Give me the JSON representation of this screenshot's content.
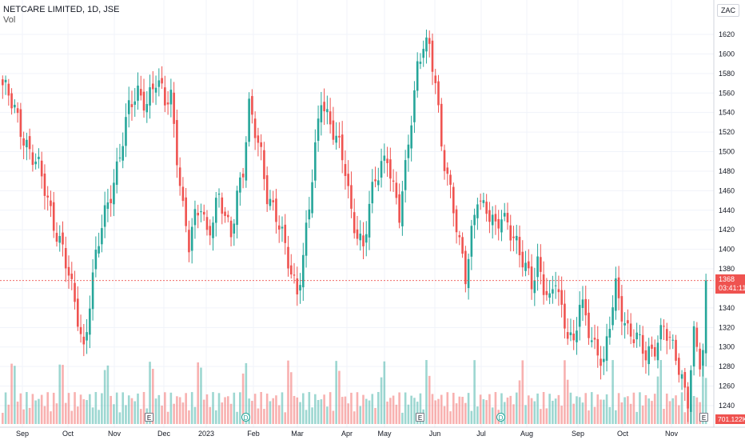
{
  "header": {
    "symbol_line": "NETCARE LIMITED, 1D, JSE",
    "volume_label": "Vol"
  },
  "currency": "ZAC",
  "price_tag": {
    "price": "1368",
    "countdown": "03:41:11"
  },
  "volume_tag": "701.122K",
  "colors": {
    "up": "#26a69a",
    "down": "#ef5350",
    "grid": "#f0f3fa",
    "axis": "#131722"
  },
  "events": [
    {
      "symbol": "E",
      "kind": "earnings",
      "month_index": 3
    },
    {
      "symbol": "D",
      "kind": "dividend",
      "month_index": 5
    },
    {
      "symbol": "E",
      "kind": "earnings",
      "month_index": 9
    },
    {
      "symbol": "D",
      "kind": "dividend",
      "month_index": 11
    },
    {
      "symbol": "E",
      "kind": "earnings",
      "month_index": 15
    }
  ],
  "chart_data": {
    "type": "candlestick",
    "ylim": [
      1220,
      1640
    ],
    "y_ticks": [
      1240,
      1260,
      1280,
      1300,
      1320,
      1340,
      1360,
      1380,
      1400,
      1420,
      1440,
      1460,
      1480,
      1500,
      1520,
      1540,
      1560,
      1580,
      1600,
      1620
    ],
    "x_ticks": [
      "Sep",
      "Oct",
      "Nov",
      "Dec",
      "2023",
      "Feb",
      "Mar",
      "Apr",
      "May",
      "Jun",
      "Jul",
      "Aug",
      "Sep",
      "Oct",
      "Nov"
    ],
    "last_price": 1368,
    "close_path": [
      [
        0,
        1568
      ],
      [
        4,
        1540
      ],
      [
        8,
        1510
      ],
      [
        12,
        1480
      ],
      [
        16,
        1440
      ],
      [
        20,
        1400
      ],
      [
        23,
        1355
      ],
      [
        25,
        1330
      ],
      [
        27,
        1300
      ],
      [
        29,
        1350
      ],
      [
        31,
        1390
      ],
      [
        33,
        1420
      ],
      [
        36,
        1460
      ],
      [
        39,
        1500
      ],
      [
        42,
        1540
      ],
      [
        45,
        1560
      ],
      [
        48,
        1555
      ],
      [
        51,
        1570
      ],
      [
        54,
        1550
      ],
      [
        56,
        1560
      ],
      [
        58,
        1500
      ],
      [
        60,
        1440
      ],
      [
        62,
        1400
      ],
      [
        64,
        1430
      ],
      [
        66,
        1450
      ],
      [
        68,
        1420
      ],
      [
        70,
        1430
      ],
      [
        72,
        1450
      ],
      [
        74,
        1430
      ],
      [
        76,
        1420
      ],
      [
        78,
        1460
      ],
      [
        80,
        1480
      ],
      [
        82,
        1540
      ],
      [
        84,
        1520
      ],
      [
        86,
        1500
      ],
      [
        88,
        1460
      ],
      [
        90,
        1440
      ],
      [
        92,
        1420
      ],
      [
        94,
        1400
      ],
      [
        96,
        1380
      ],
      [
        98,
        1360
      ],
      [
        100,
        1390
      ],
      [
        102,
        1440
      ],
      [
        104,
        1500
      ],
      [
        106,
        1560
      ],
      [
        108,
        1540
      ],
      [
        110,
        1520
      ],
      [
        112,
        1500
      ],
      [
        114,
        1480
      ],
      [
        116,
        1440
      ],
      [
        118,
        1420
      ],
      [
        120,
        1400
      ],
      [
        122,
        1440
      ],
      [
        124,
        1470
      ],
      [
        126,
        1490
      ],
      [
        128,
        1500
      ],
      [
        130,
        1460
      ],
      [
        132,
        1430
      ],
      [
        134,
        1480
      ],
      [
        136,
        1540
      ],
      [
        138,
        1590
      ],
      [
        140,
        1610
      ],
      [
        142,
        1600
      ],
      [
        144,
        1570
      ],
      [
        146,
        1510
      ],
      [
        148,
        1480
      ],
      [
        150,
        1440
      ],
      [
        152,
        1400
      ],
      [
        154,
        1370
      ],
      [
        156,
        1420
      ],
      [
        158,
        1460
      ],
      [
        160,
        1440
      ],
      [
        162,
        1430
      ],
      [
        164,
        1420
      ],
      [
        166,
        1440
      ],
      [
        168,
        1430
      ],
      [
        170,
        1410
      ],
      [
        172,
        1390
      ],
      [
        174,
        1380
      ],
      [
        176,
        1370
      ],
      [
        178,
        1390
      ],
      [
        180,
        1360
      ],
      [
        182,
        1340
      ],
      [
        184,
        1370
      ],
      [
        186,
        1340
      ],
      [
        188,
        1320
      ],
      [
        190,
        1300
      ],
      [
        192,
        1340
      ],
      [
        194,
        1330
      ],
      [
        196,
        1310
      ],
      [
        198,
        1300
      ],
      [
        200,
        1280
      ],
      [
        202,
        1320
      ],
      [
        204,
        1360
      ],
      [
        206,
        1340
      ],
      [
        208,
        1320
      ],
      [
        210,
        1310
      ],
      [
        212,
        1300
      ],
      [
        214,
        1290
      ],
      [
        216,
        1300
      ],
      [
        218,
        1310
      ],
      [
        220,
        1320
      ],
      [
        222,
        1300
      ],
      [
        224,
        1290
      ],
      [
        226,
        1270
      ],
      [
        228,
        1250
      ],
      [
        230,
        1310
      ],
      [
        232,
        1280
      ],
      [
        233,
        1290
      ],
      [
        234,
        1368
      ]
    ],
    "volume_range": [
      0,
      1500000
    ]
  }
}
